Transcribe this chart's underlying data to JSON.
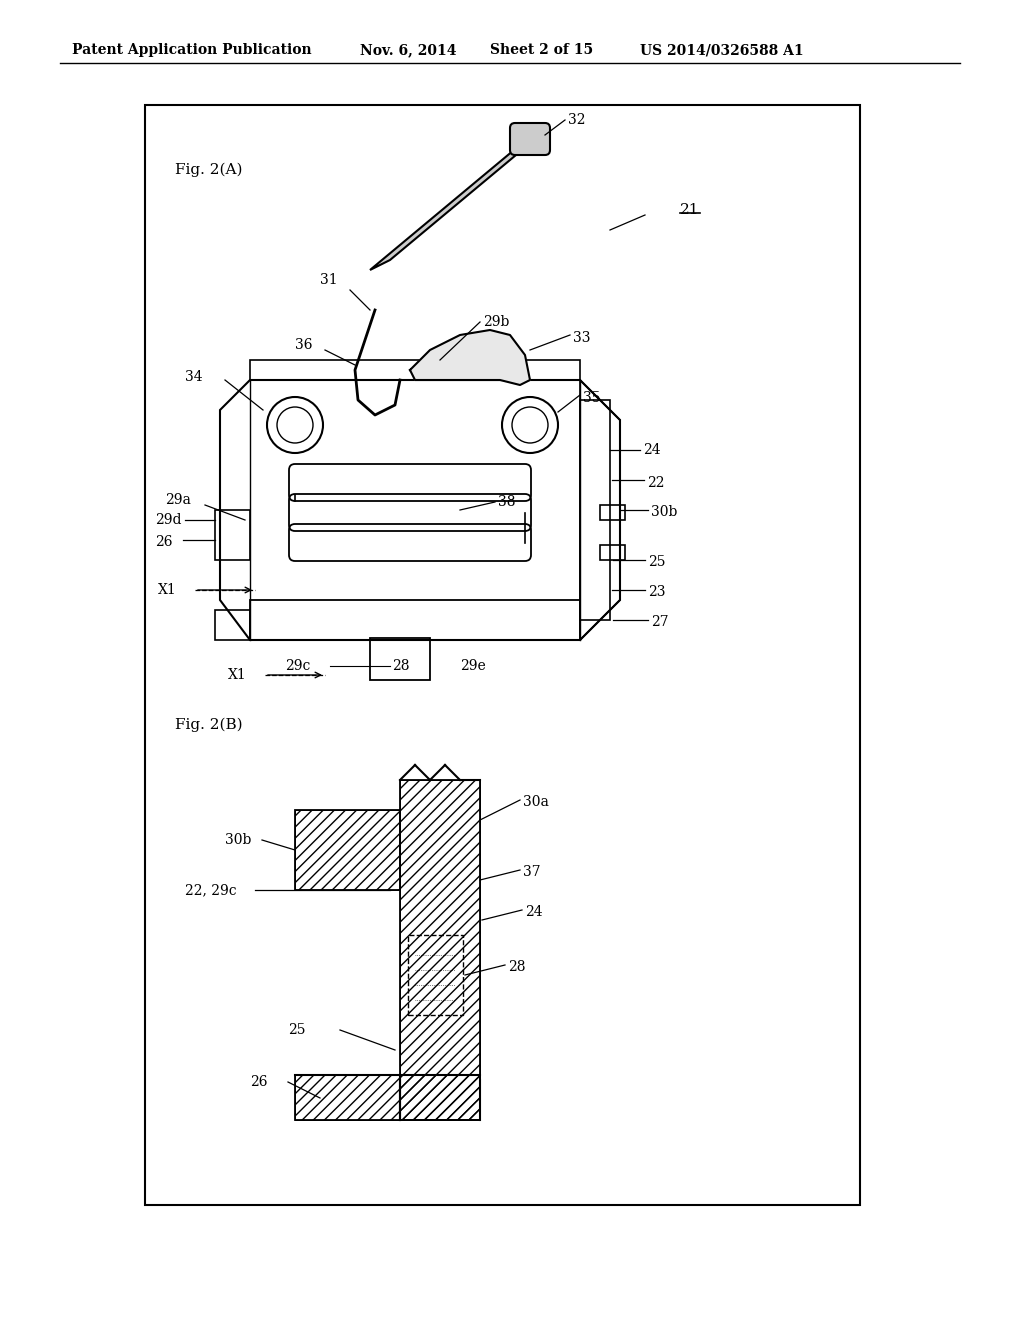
{
  "bg_color": "#ffffff",
  "border_color": "#000000",
  "line_color": "#000000",
  "header_text": "Patent Application Publication",
  "header_date": "Nov. 6, 2014",
  "header_sheet": "Sheet 2 of 15",
  "header_patent": "US 2014/0326588 A1",
  "fig_a_label": "Fig. 2(A)",
  "fig_b_label": "Fig. 2(B)",
  "ref_21": "21",
  "ref_22": "22",
  "ref_23": "23",
  "ref_24": "24",
  "ref_25": "25",
  "ref_26": "26",
  "ref_27": "27",
  "ref_28": "28",
  "ref_29a": "29a",
  "ref_29b": "29b",
  "ref_29c": "29c",
  "ref_29d": "29d",
  "ref_29e": "29e",
  "ref_30a": "30a",
  "ref_30b": "30b",
  "ref_31": "31",
  "ref_32": "32",
  "ref_33": "33",
  "ref_34": "34",
  "ref_35": "35",
  "ref_36": "36",
  "ref_37": "37",
  "ref_38": "38",
  "ref_X1": "X1"
}
